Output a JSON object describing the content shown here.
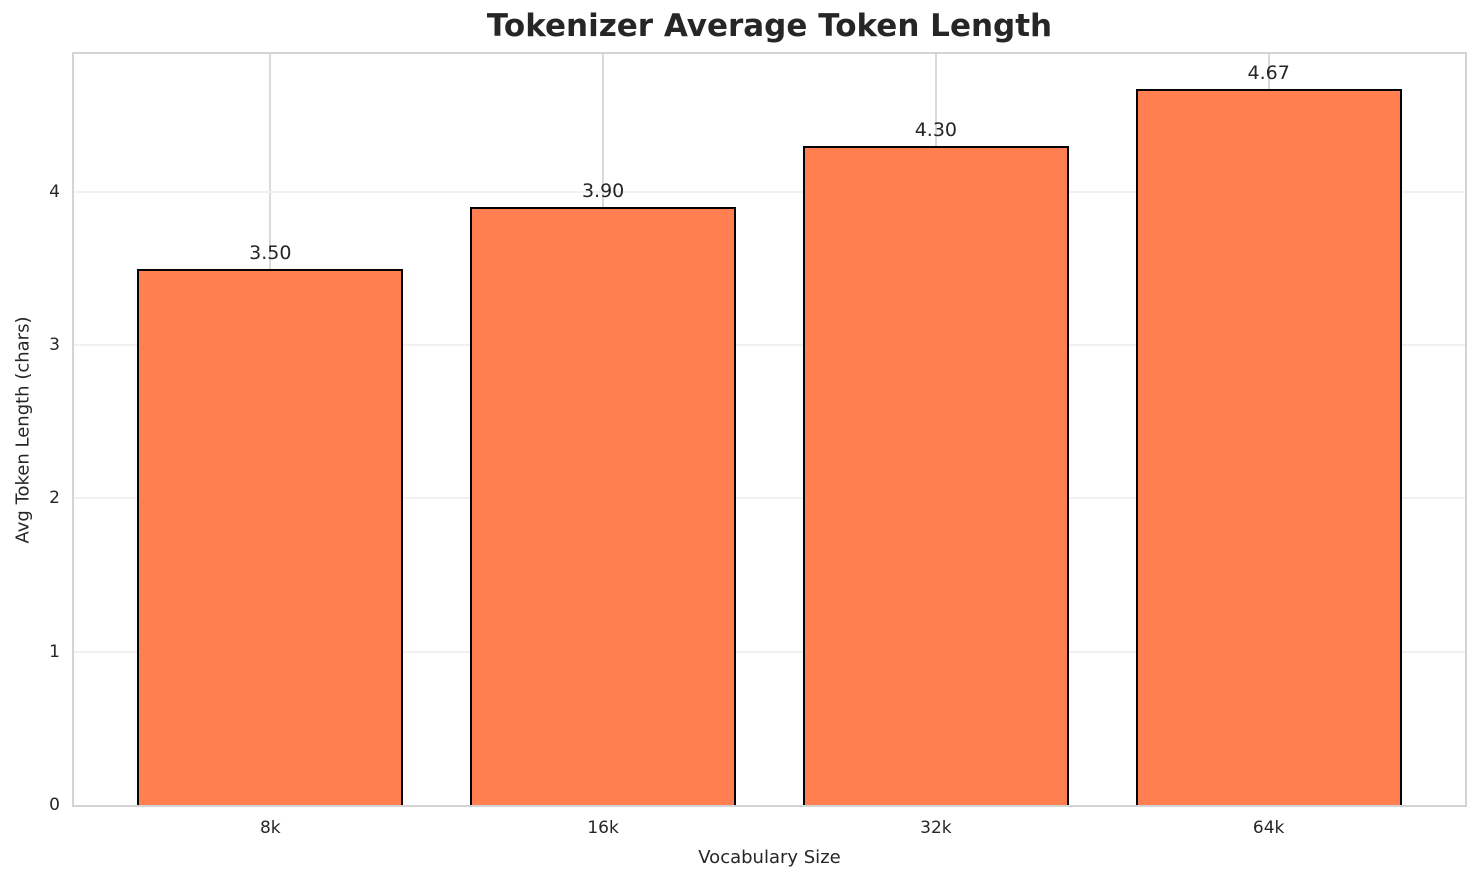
{
  "chart_data": {
    "type": "bar",
    "title": "Tokenizer Average Token Length",
    "xlabel": "Vocabulary Size",
    "ylabel": "Avg Token Length (chars)",
    "categories": [
      "8k",
      "16k",
      "32k",
      "64k"
    ],
    "values": [
      3.5,
      3.9,
      4.3,
      4.67
    ],
    "bar_labels": [
      "3.50",
      "3.90",
      "4.30",
      "4.67"
    ],
    "yticks": [
      0,
      1,
      2,
      3,
      4
    ],
    "ytick_labels": [
      "0",
      "1",
      "2",
      "3",
      "4"
    ],
    "ylim": [
      0,
      4.9
    ],
    "grid": "on",
    "legend": "none",
    "colors": {
      "bar_fill": "#FF7F50",
      "bar_edge": "#000000",
      "text": "#262626",
      "spine": "#D4D4D4",
      "hgrid": "#F1F1F1",
      "vgrid": "#DADADA",
      "background": "#FFFFFF"
    }
  }
}
